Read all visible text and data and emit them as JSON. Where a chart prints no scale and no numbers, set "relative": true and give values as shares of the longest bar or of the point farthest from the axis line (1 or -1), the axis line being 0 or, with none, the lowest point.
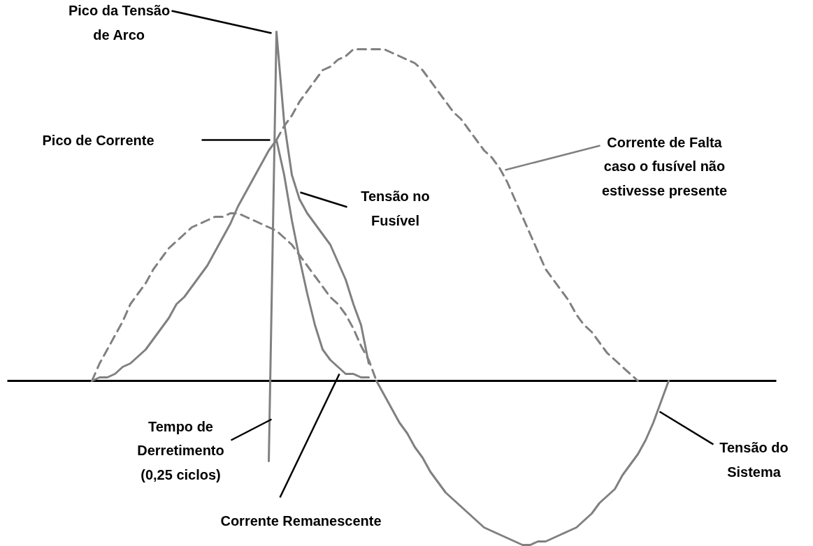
{
  "chart_data": {
    "type": "line",
    "relative": true,
    "marker": "none",
    "categories": [
      null,
      null,
      null,
      null,
      null,
      null,
      null,
      null,
      null,
      null,
      null,
      null,
      null,
      null,
      null,
      null,
      null,
      null,
      null,
      null,
      null,
      null,
      null,
      null,
      null,
      null,
      null,
      null,
      null,
      null,
      null,
      null,
      null,
      null,
      null,
      null,
      null,
      null,
      null,
      null,
      null,
      null,
      null,
      null,
      null,
      null,
      null,
      null,
      null,
      null,
      null,
      null,
      null,
      null,
      null,
      null,
      null,
      null,
      null,
      null,
      null,
      null,
      null,
      null,
      null,
      null,
      null,
      null,
      null,
      null,
      null,
      null,
      null,
      null,
      null,
      null,
      null
    ],
    "series": [
      {
        "color": "#808080",
        "line_style": "dashed",
        "values": [
          null,
          0,
          0.05,
          0.09,
          0.13,
          0.17,
          0.22,
          0.25,
          0.28,
          0.32,
          0.35,
          0.38,
          0.4,
          0.42,
          0.44,
          0.45,
          0.46,
          0.47,
          0.47,
          0.48,
          0.48,
          0.47,
          0.46,
          0.45,
          0.44,
          0.43,
          0.41,
          0.39,
          0.36,
          0.33,
          0.3,
          0.27,
          0.24,
          0.22,
          0.19,
          0.15,
          0.1,
          0.06,
          0,
          null,
          null,
          null,
          null,
          null,
          null,
          null,
          null,
          null,
          null,
          null,
          null,
          null,
          null,
          null,
          null,
          null,
          null,
          null,
          null,
          null,
          null,
          null,
          null,
          null,
          null,
          null,
          null,
          null,
          null,
          null,
          null,
          null,
          null,
          null,
          null,
          null,
          null
        ]
      },
      {
        "color": "#808080",
        "line_style": "solid",
        "values": [
          null,
          null,
          null,
          null,
          null,
          null,
          null,
          null,
          null,
          null,
          null,
          null,
          null,
          null,
          null,
          null,
          null,
          null,
          null,
          null,
          null,
          null,
          null,
          null,
          null,
          null,
          null,
          null,
          null,
          null,
          null,
          null,
          null,
          null,
          null,
          null,
          null,
          null,
          0,
          -0.04,
          -0.08,
          -0.12,
          -0.15,
          -0.19,
          -0.22,
          -0.26,
          -0.29,
          -0.32,
          -0.34,
          -0.36,
          -0.38,
          -0.4,
          -0.42,
          -0.43,
          -0.44,
          -0.45,
          -0.46,
          -0.47,
          -0.47,
          -0.46,
          -0.46,
          -0.45,
          -0.44,
          -0.43,
          -0.42,
          -0.4,
          -0.38,
          -0.35,
          -0.33,
          -0.31,
          -0.27,
          -0.24,
          -0.21,
          -0.17,
          -0.12,
          -0.06,
          0
        ]
      },
      {
        "color": "#808080",
        "line_style": "dashed",
        "values": [
          null,
          null,
          null,
          null,
          null,
          null,
          null,
          null,
          null,
          null,
          null,
          null,
          null,
          null,
          null,
          null,
          null,
          null,
          null,
          null,
          null,
          null,
          null,
          null,
          null,
          0.69,
          0.73,
          0.76,
          0.8,
          0.83,
          0.86,
          0.89,
          0.9,
          0.92,
          0.93,
          0.95,
          0.95,
          0.95,
          0.95,
          0.95,
          0.94,
          0.93,
          0.92,
          0.91,
          0.89,
          0.86,
          0.83,
          0.8,
          0.77,
          0.75,
          0.72,
          0.69,
          0.66,
          0.64,
          0.61,
          0.57,
          0.52,
          0.47,
          0.42,
          0.37,
          0.32,
          0.29,
          0.26,
          0.23,
          0.19,
          0.16,
          0.14,
          0.11,
          0.08,
          0.06,
          0.04,
          0.02,
          0,
          null,
          null,
          null,
          null
        ]
      },
      {
        "color": "#808080",
        "line_style": "solid",
        "values": [
          null,
          0,
          0.01,
          0.01,
          0.02,
          0.04,
          0.05,
          0.07,
          0.09,
          0.12,
          0.15,
          0.18,
          0.22,
          0.24,
          0.27,
          0.3,
          0.33,
          0.37,
          0.41,
          0.45,
          0.5,
          0.54,
          0.58,
          0.62,
          0.66,
          0.69,
          0.59,
          0.46,
          0.35,
          0.25,
          0.16,
          0.09,
          0.06,
          0.04,
          0.02,
          0.02,
          0.01,
          0.01,
          null,
          null,
          null,
          null,
          null,
          null,
          null,
          null,
          null,
          null,
          null,
          null,
          null,
          null,
          null,
          null,
          null,
          null,
          null,
          null,
          null,
          null,
          null,
          null,
          null,
          null,
          null,
          null,
          null,
          null,
          null,
          null,
          null,
          null,
          null,
          null,
          null,
          null,
          null
        ]
      },
      {
        "color": "#808080",
        "line_style": "solid",
        "values": [
          null,
          null,
          null,
          null,
          null,
          null,
          null,
          null,
          null,
          null,
          null,
          null,
          null,
          null,
          null,
          null,
          null,
          null,
          null,
          null,
          null,
          null,
          null,
          null,
          -0.23,
          1,
          0.74,
          0.59,
          0.52,
          0.48,
          0.45,
          0.42,
          0.39,
          0.34,
          0.29,
          0.22,
          0.16,
          0.05,
          null,
          null,
          null,
          null,
          null,
          null,
          null,
          null,
          null,
          null,
          null,
          null,
          null,
          null,
          null,
          null,
          null,
          null,
          null,
          null,
          null,
          null,
          null,
          null,
          null,
          null,
          null,
          null,
          null,
          null,
          null,
          null,
          null,
          null,
          null,
          null,
          null,
          null,
          null
        ]
      }
    ],
    "ref_lines": [
      {
        "axis": "y",
        "value": 0.69,
        "label": "Pico de Corrente"
      }
    ],
    "annotations": [
      "Pico da Tensão\nde Arco",
      "Tensão no\nFusível",
      "Corrente de Falta\ncaso o fusível não\nestivesse presente",
      "Tempo de\nDerretimento\n(0,25 ciclos)",
      "Corrente Remanescente",
      "Tensão do\nSistema"
    ]
  }
}
